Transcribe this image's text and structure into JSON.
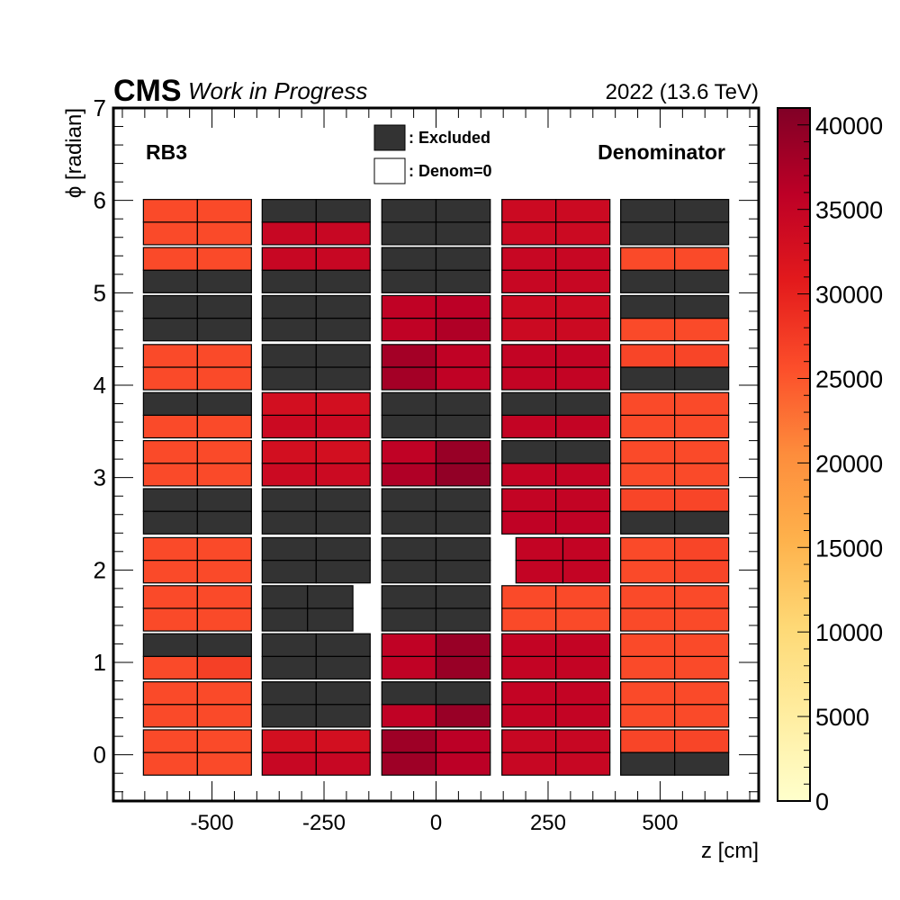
{
  "header": {
    "experiment": "CMS",
    "status": "Work in Progress",
    "energy": "2022 (13.6 TeV)"
  },
  "labels": {
    "region": "RB3",
    "quantity": "Denominator"
  },
  "legend": {
    "excluded": ": Excluded",
    "denom_zero": ": Denom=0"
  },
  "colors": {
    "excluded": "#333333",
    "colormap": [
      "#ffffcc",
      "#ffeda0",
      "#fed976",
      "#feb24c",
      "#fd8d3c",
      "#fc4e2a",
      "#e31a1c",
      "#bd0026",
      "#800026"
    ]
  },
  "chart_data": {
    "type": "heatmap",
    "xlabel": "z [cm]",
    "ylabel": "ϕ [radian]",
    "xlim": [
      -720,
      720
    ],
    "ylim": [
      -0.5,
      7
    ],
    "xticks": [
      -500,
      -250,
      0,
      250,
      500
    ],
    "xtick_labels": [
      "-500",
      "-250",
      "0",
      "250",
      "500"
    ],
    "yticks": [
      0,
      1,
      2,
      3,
      4,
      5,
      6,
      7
    ],
    "ytick_labels": [
      "0",
      "1",
      "2",
      "3",
      "4",
      "5",
      "6",
      "7"
    ],
    "colorbar": {
      "min": 0,
      "max": 41000,
      "ticks": [
        0,
        5000,
        10000,
        15000,
        20000,
        25000,
        30000,
        35000,
        40000
      ],
      "tick_labels": [
        "0",
        "5000",
        "10000",
        "15000",
        "20000",
        "25000",
        "30000",
        "35000",
        "40000"
      ]
    },
    "wheels": [
      {
        "z_min": -653,
        "z_max": -412
      },
      {
        "z_min": -388,
        "z_max": -147
      },
      {
        "z_min": -121,
        "z_max": 121
      },
      {
        "z_min": 147,
        "z_max": 388
      },
      {
        "z_min": 412,
        "z_max": 653
      }
    ],
    "sectors": [
      {
        "sector": 1,
        "phi_min": -0.22,
        "phi_max": 0.27
      },
      {
        "sector": 2,
        "phi_min": 0.3,
        "phi_max": 0.79
      },
      {
        "sector": 3,
        "phi_min": 0.82,
        "phi_max": 1.31
      },
      {
        "sector": 4,
        "phi_min": 1.34,
        "phi_max": 1.83
      },
      {
        "sector": 5,
        "phi_min": 1.86,
        "phi_max": 2.35
      },
      {
        "sector": 6,
        "phi_min": 2.39,
        "phi_max": 2.88
      },
      {
        "sector": 7,
        "phi_min": 2.91,
        "phi_max": 3.4
      },
      {
        "sector": 8,
        "phi_min": 3.43,
        "phi_max": 3.92
      },
      {
        "sector": 9,
        "phi_min": 3.95,
        "phi_max": 4.44
      },
      {
        "sector": 10,
        "phi_min": 4.48,
        "phi_max": 4.97
      },
      {
        "sector": 11,
        "phi_min": 5.0,
        "phi_max": 5.49
      },
      {
        "sector": 12,
        "phi_min": 5.52,
        "phi_max": 6.01
      }
    ],
    "cells_note": "cells[wheel][sector] = [bottom_row, top_row]; each row = [left_value, right_value]; value -1 = Excluded, null = not present",
    "cells": [
      [
        [
          [
            26000,
            26000
          ],
          [
            26000,
            26000
          ]
        ],
        [
          [
            26000,
            26000
          ],
          [
            26000,
            26000
          ]
        ],
        [
          [
            26000,
            27000
          ],
          [
            -1,
            -1
          ]
        ],
        [
          [
            26000,
            26000
          ],
          [
            26000,
            26000
          ]
        ],
        [
          [
            26000,
            26000
          ],
          [
            26000,
            26000
          ]
        ],
        [
          [
            -1,
            -1
          ],
          [
            -1,
            -1
          ]
        ],
        [
          [
            26000,
            26000
          ],
          [
            26000,
            26000
          ]
        ],
        [
          [
            26000,
            26000
          ],
          [
            -1,
            -1
          ]
        ],
        [
          [
            26000,
            26000
          ],
          [
            26000,
            26000
          ]
        ],
        [
          [
            -1,
            -1
          ],
          [
            -1,
            -1
          ]
        ],
        [
          [
            -1,
            -1
          ],
          [
            26000,
            26000
          ]
        ],
        [
          [
            26000,
            26000
          ],
          [
            26000,
            26000
          ]
        ]
      ],
      [
        [
          [
            34500,
            34500
          ],
          [
            33000,
            33000
          ]
        ],
        [
          [
            -1,
            -1
          ],
          [
            -1,
            -1
          ]
        ],
        [
          [
            -1,
            -1
          ],
          [
            -1,
            -1
          ]
        ],
        [
          [
            -1,
            -1
          ],
          [
            -1,
            -1
          ]
        ],
        [
          [
            -1,
            -1
          ],
          [
            -1,
            -1
          ]
        ],
        [
          [
            -1,
            -1
          ],
          [
            -1,
            -1
          ]
        ],
        [
          [
            34000,
            34000
          ],
          [
            33000,
            33000
          ]
        ],
        [
          [
            34000,
            34000
          ],
          [
            33000,
            33000
          ]
        ],
        [
          [
            -1,
            -1
          ],
          [
            -1,
            -1
          ]
        ],
        [
          [
            -1,
            -1
          ],
          [
            -1,
            -1
          ]
        ],
        [
          [
            -1,
            -1
          ],
          [
            34500,
            34500
          ]
        ],
        [
          [
            34500,
            34500
          ],
          [
            -1,
            -1
          ]
        ]
      ],
      [
        [
          [
            38500,
            36000
          ],
          [
            38500,
            36000
          ]
        ],
        [
          [
            35500,
            39000
          ],
          [
            -1,
            -1
          ]
        ],
        [
          [
            35500,
            39000
          ],
          [
            35500,
            39000
          ]
        ],
        [
          [
            -1,
            -1
          ],
          [
            -1,
            -1
          ]
        ],
        [
          [
            -1,
            -1
          ],
          [
            -1,
            -1
          ]
        ],
        [
          [
            -1,
            -1
          ],
          [
            -1,
            -1
          ]
        ],
        [
          [
            37000,
            39500
          ],
          [
            35500,
            39000
          ]
        ],
        [
          [
            -1,
            -1
          ],
          [
            -1,
            -1
          ]
        ],
        [
          [
            38000,
            35500
          ],
          [
            38000,
            35500
          ]
        ],
        [
          [
            35500,
            37000
          ],
          [
            35500,
            36000
          ]
        ],
        [
          [
            -1,
            -1
          ],
          [
            -1,
            -1
          ]
        ],
        [
          [
            -1,
            -1
          ],
          [
            -1,
            -1
          ]
        ]
      ],
      [
        [
          [
            34500,
            34500
          ],
          [
            34500,
            34500
          ]
        ],
        [
          [
            35000,
            35000
          ],
          [
            35000,
            35000
          ]
        ],
        [
          [
            35000,
            35000
          ],
          [
            35000,
            35000
          ]
        ],
        [
          [
            26000,
            26000
          ],
          [
            26000,
            26000
          ]
        ],
        [
          [
            35000,
            35000
          ],
          [
            35000,
            35000
          ]
        ],
        [
          [
            35500,
            35500
          ],
          [
            35000,
            35000
          ]
        ],
        [
          [
            35000,
            35000
          ],
          [
            -1,
            -1
          ]
        ],
        [
          [
            35000,
            35000
          ],
          [
            -1,
            -1
          ]
        ],
        [
          [
            35000,
            35000
          ],
          [
            35000,
            35000
          ]
        ],
        [
          [
            34000,
            34000
          ],
          [
            34000,
            34000
          ]
        ],
        [
          [
            34500,
            34500
          ],
          [
            34500,
            34500
          ]
        ],
        [
          [
            34000,
            34000
          ],
          [
            34000,
            34000
          ]
        ]
      ],
      [
        [
          [
            -1,
            -1
          ],
          [
            26500,
            26500
          ]
        ],
        [
          [
            26000,
            26000
          ],
          [
            26000,
            26000
          ]
        ],
        [
          [
            26000,
            26000
          ],
          [
            26000,
            26000
          ]
        ],
        [
          [
            26000,
            26000
          ],
          [
            26000,
            26000
          ]
        ],
        [
          [
            26000,
            26500
          ],
          [
            26000,
            26500
          ]
        ],
        [
          [
            -1,
            -1
          ],
          [
            26500,
            26500
          ]
        ],
        [
          [
            26000,
            26000
          ],
          [
            26000,
            26000
          ]
        ],
        [
          [
            26000,
            26000
          ],
          [
            26000,
            26000
          ]
        ],
        [
          [
            -1,
            -1
          ],
          [
            26500,
            26500
          ]
        ],
        [
          [
            26000,
            26000
          ],
          [
            -1,
            -1
          ]
        ],
        [
          [
            -1,
            -1
          ],
          [
            26000,
            26000
          ]
        ],
        [
          [
            -1,
            -1
          ],
          [
            -1,
            -1
          ]
        ]
      ]
    ],
    "gaps": [
      {
        "wheel": 3,
        "sector": 4,
        "missing": "left-strip"
      },
      {
        "wheel": 1,
        "sector": 3,
        "missing": "right-strip"
      }
    ]
  }
}
